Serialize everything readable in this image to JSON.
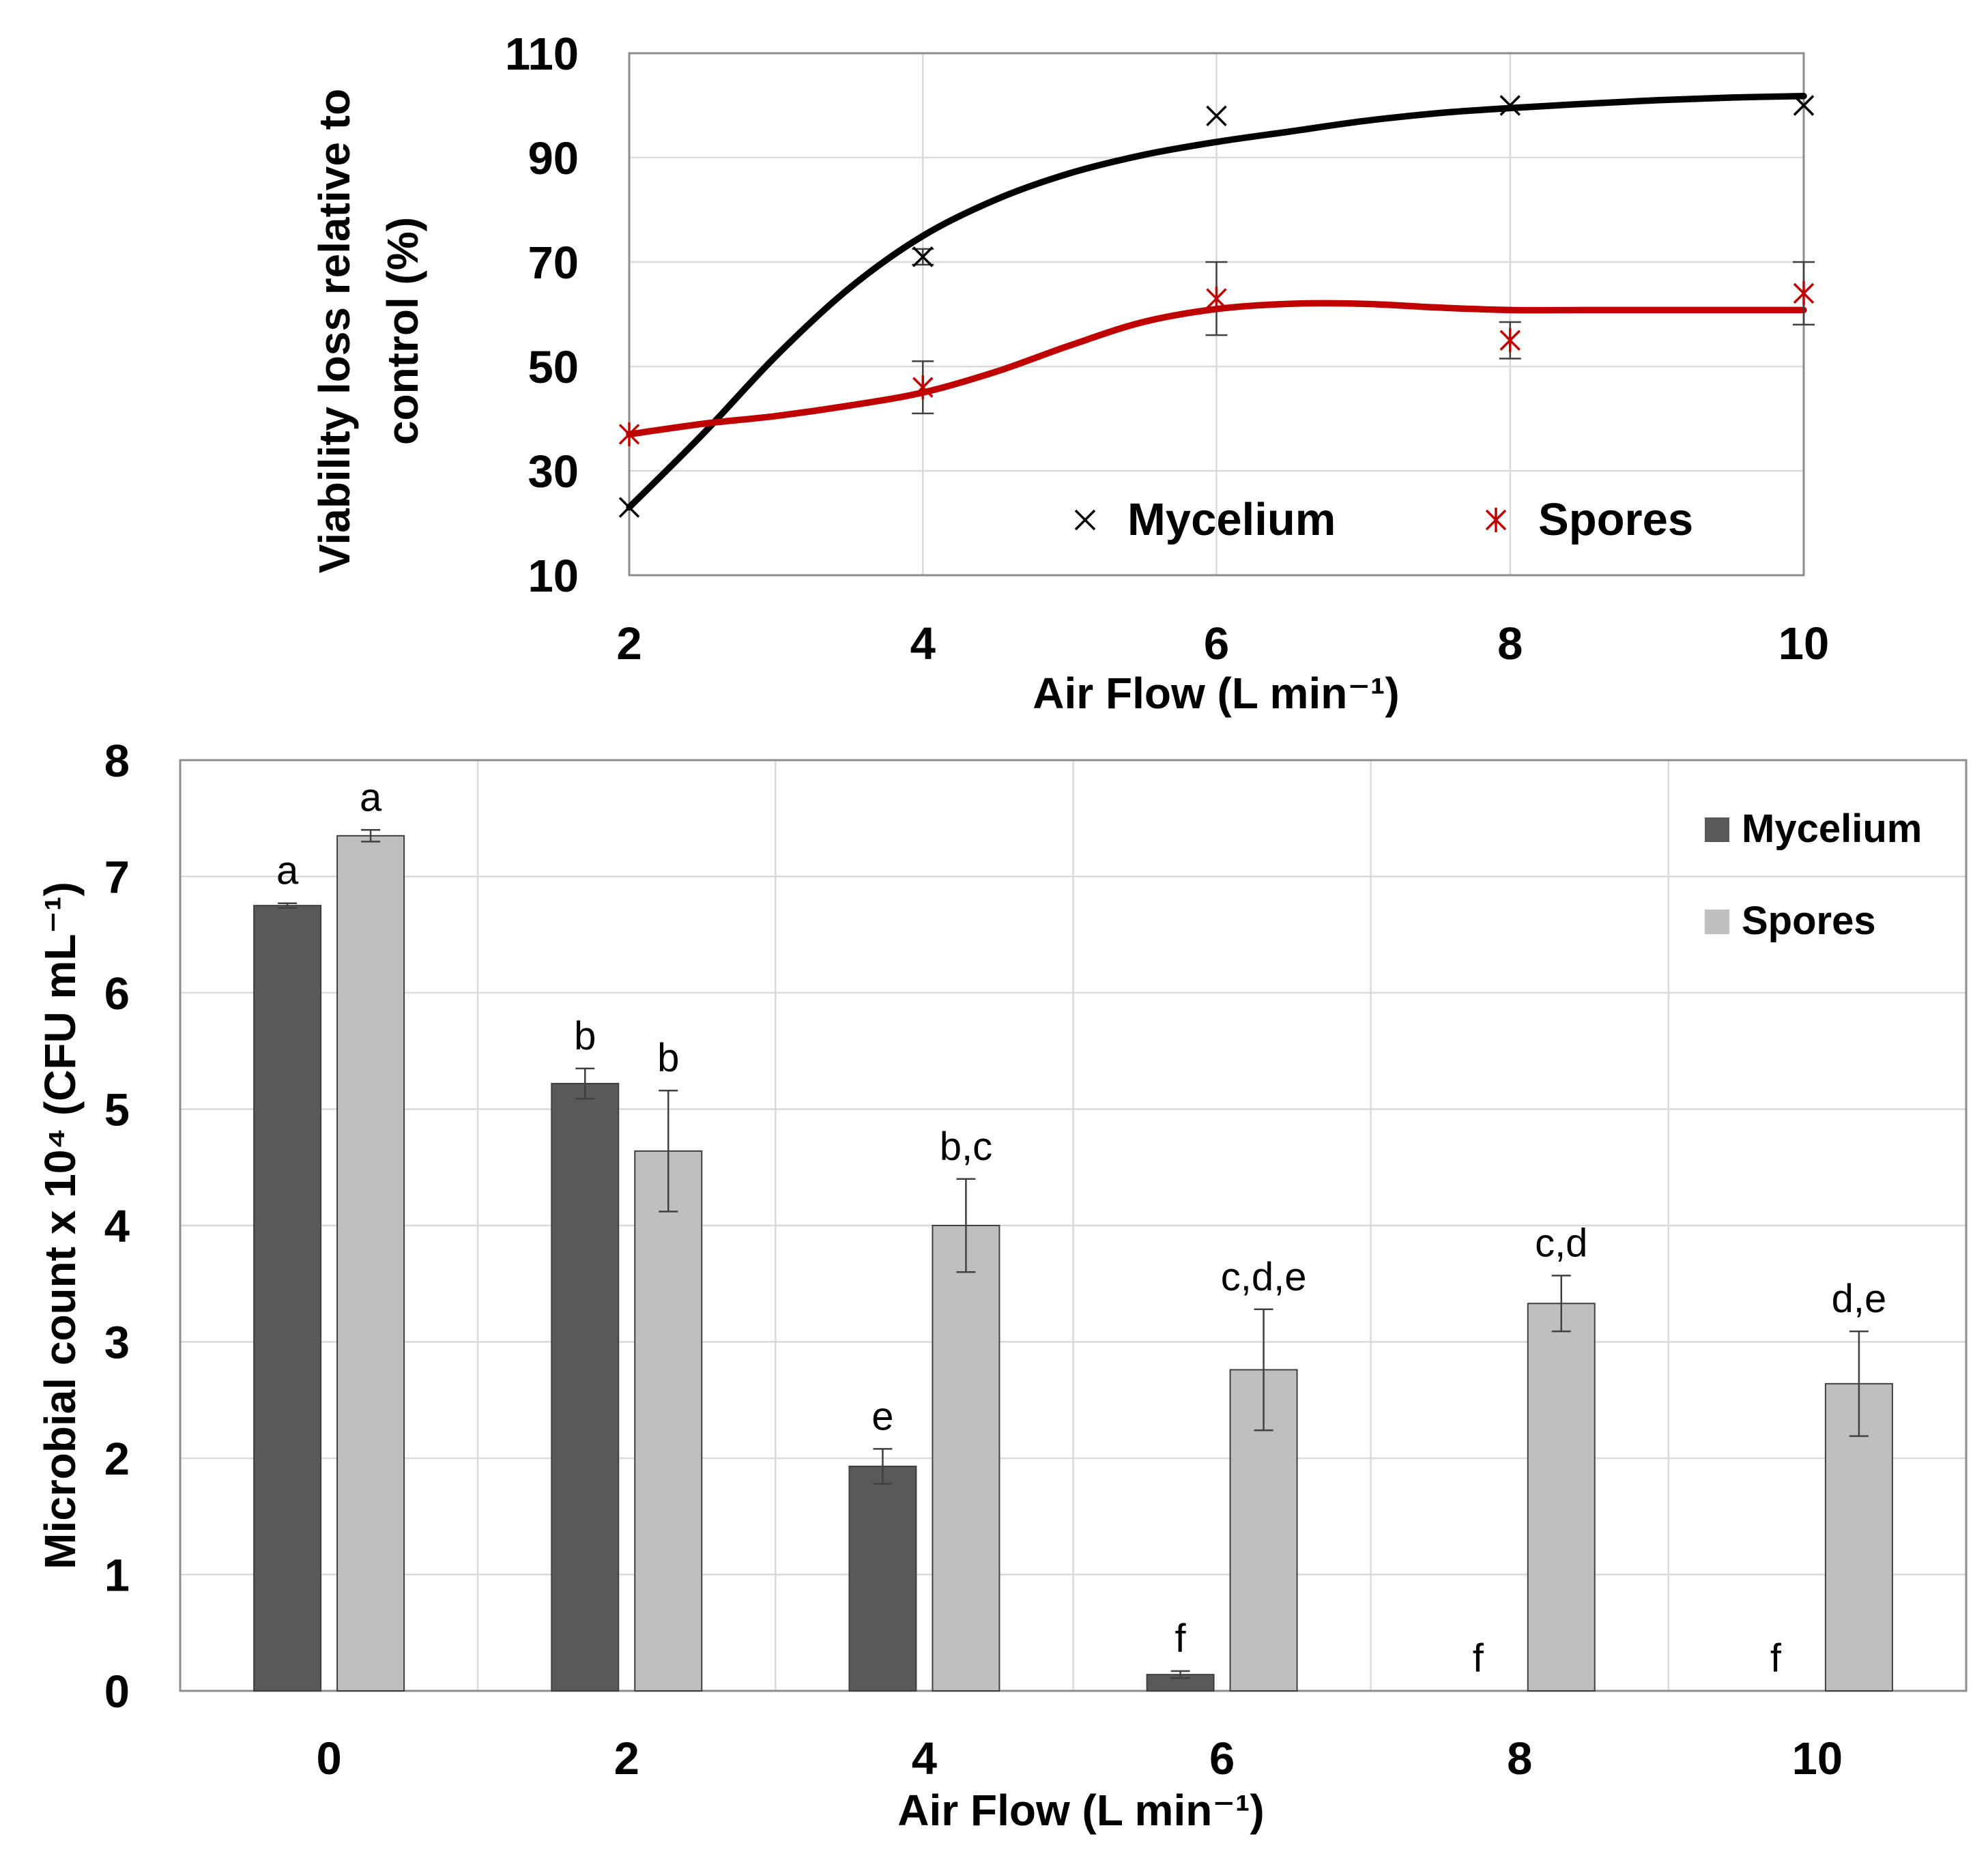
{
  "chart_data": [
    {
      "type": "line",
      "xlabel": "Air Flow (L min⁻¹)",
      "ylabel_lines": [
        "Viability loss relative to",
        "control (%)"
      ],
      "xlim": [
        2,
        10
      ],
      "ylim": [
        10,
        110
      ],
      "x_ticks": [
        2,
        4,
        6,
        8,
        10
      ],
      "y_ticks": [
        10,
        30,
        50,
        70,
        90,
        110
      ],
      "grid": true,
      "legend_position": "bottom-right",
      "series": [
        {
          "name": "Mycelium",
          "marker": "x",
          "color": "#000000",
          "x": [
            2,
            4,
            6,
            8,
            10
          ],
          "y": [
            23,
            71,
            98,
            100,
            100
          ],
          "error": [
            0,
            1.5,
            0,
            0,
            0
          ],
          "fit_x": [
            2,
            2.5,
            3,
            3.5,
            4,
            4.5,
            5,
            5.5,
            6,
            6.5,
            7,
            7.5,
            8,
            8.5,
            9,
            9.5,
            10
          ],
          "fit_y": [
            23,
            37,
            52,
            65,
            75,
            82,
            87,
            90.5,
            93,
            95,
            97,
            98.5,
            99.5,
            100.3,
            101,
            101.5,
            101.8
          ]
        },
        {
          "name": "Spores",
          "marker": "star",
          "color": "#c00000",
          "x": [
            2,
            4,
            6,
            8,
            10
          ],
          "y": [
            37,
            46,
            63,
            55,
            64
          ],
          "error": [
            0,
            5,
            7,
            3.5,
            6
          ],
          "fit_x": [
            2,
            2.5,
            3,
            3.5,
            4,
            4.5,
            5,
            5.5,
            6,
            6.5,
            7,
            7.5,
            8,
            8.5,
            9,
            9.5,
            10
          ],
          "fit_y": [
            37,
            39,
            40.5,
            42.5,
            45,
            49,
            54,
            58.5,
            61,
            62,
            62,
            61.3,
            60.8,
            60.8,
            60.8,
            60.8,
            60.8
          ]
        }
      ]
    },
    {
      "type": "bar",
      "xlabel": "Air Flow (L min⁻¹)",
      "ylabel": "Microbial count x 10⁴ (CFU mL⁻¹)",
      "categories": [
        "0",
        "2",
        "4",
        "6",
        "8",
        "10"
      ],
      "ylim": [
        0,
        8
      ],
      "y_ticks": [
        0,
        1,
        2,
        3,
        4,
        5,
        6,
        7,
        8
      ],
      "grid": true,
      "legend_position": "top-right",
      "series": [
        {
          "name": "Mycelium",
          "color": "#595959",
          "values": [
            6.75,
            5.22,
            1.93,
            0.14,
            0,
            0
          ],
          "errors": [
            0.02,
            0.13,
            0.15,
            0.03,
            0,
            0
          ],
          "labels": [
            "a",
            "b",
            "e",
            "f",
            "f",
            "f"
          ]
        },
        {
          "name": "Spores",
          "color": "#bfbfbf",
          "values": [
            7.35,
            4.64,
            4.0,
            2.76,
            3.33,
            2.64
          ],
          "errors": [
            0.05,
            0.52,
            0.4,
            0.52,
            0.24,
            0.45
          ],
          "labels": [
            "a",
            "b",
            "b,c",
            "c,d,e",
            "c,d",
            "d,e"
          ]
        }
      ]
    }
  ]
}
